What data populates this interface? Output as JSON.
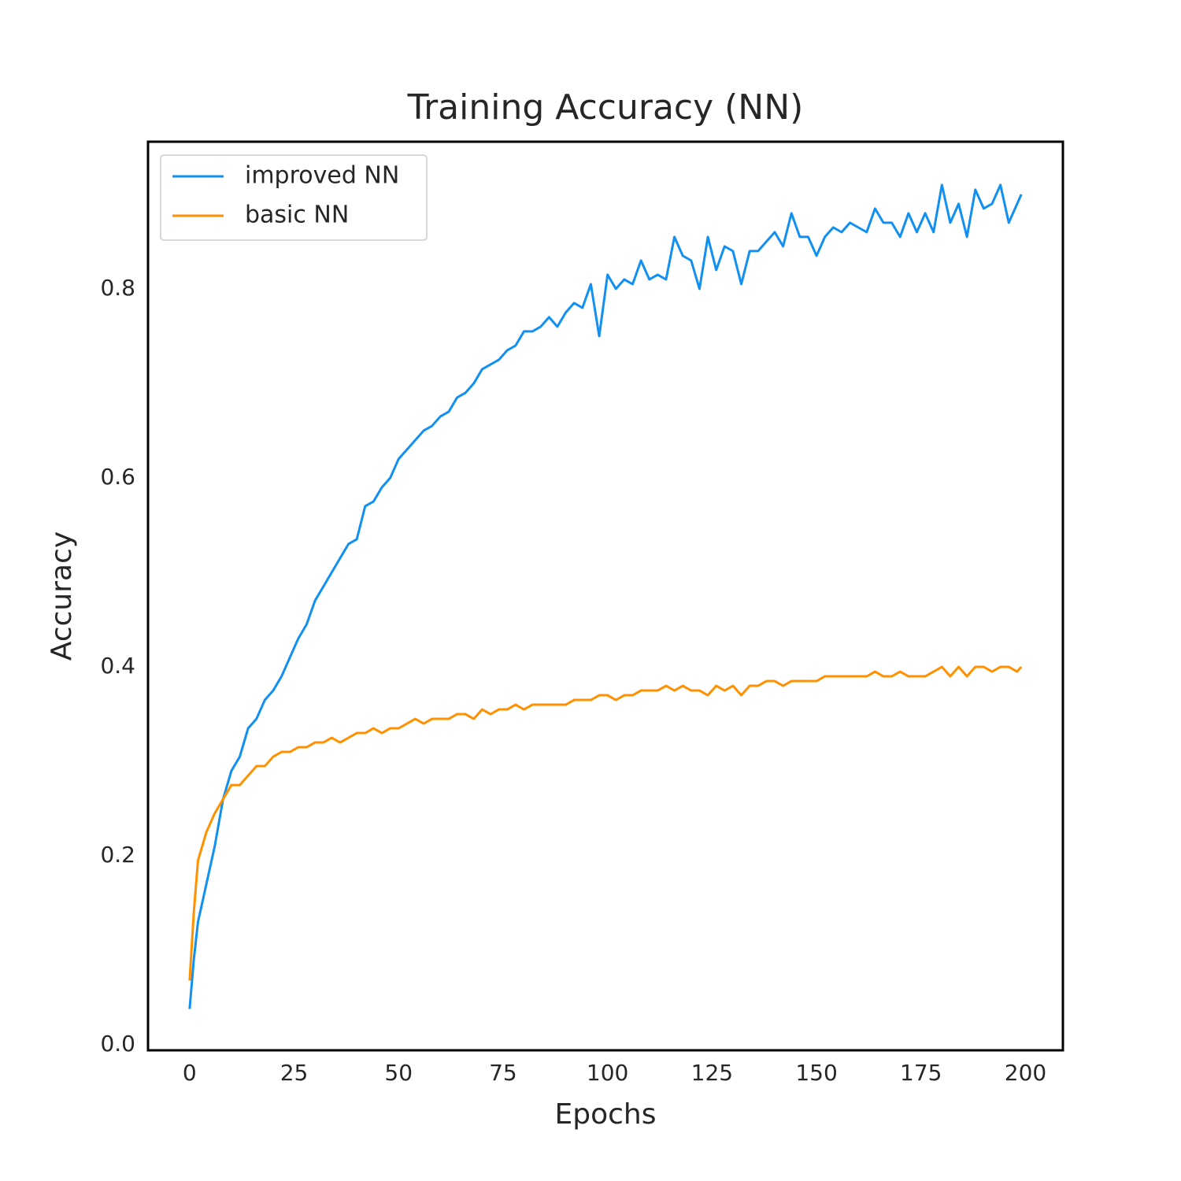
{
  "chart_data": {
    "type": "line",
    "title": "Training Accuracy (NN)",
    "xlabel": "Epochs",
    "ylabel": "Accuracy",
    "x": [
      0,
      1,
      2,
      4,
      6,
      8,
      10,
      12,
      14,
      16,
      18,
      20,
      22,
      24,
      26,
      28,
      30,
      32,
      34,
      36,
      38,
      40,
      42,
      44,
      46,
      48,
      50,
      52,
      54,
      56,
      58,
      60,
      62,
      64,
      66,
      68,
      70,
      72,
      74,
      76,
      78,
      80,
      82,
      84,
      86,
      88,
      90,
      92,
      94,
      96,
      98,
      100,
      102,
      104,
      106,
      108,
      110,
      112,
      114,
      116,
      118,
      120,
      122,
      124,
      126,
      128,
      130,
      132,
      134,
      136,
      138,
      140,
      142,
      144,
      146,
      148,
      150,
      152,
      154,
      156,
      158,
      160,
      162,
      164,
      166,
      168,
      170,
      172,
      174,
      176,
      178,
      180,
      182,
      184,
      186,
      188,
      190,
      192,
      194,
      196,
      198,
      199
    ],
    "series": [
      {
        "name": "improved NN",
        "color": "#1190f2",
        "values": [
          0.038,
          0.09,
          0.13,
          0.17,
          0.21,
          0.26,
          0.29,
          0.305,
          0.335,
          0.345,
          0.365,
          0.375,
          0.39,
          0.41,
          0.43,
          0.445,
          0.47,
          0.485,
          0.5,
          0.515,
          0.53,
          0.535,
          0.57,
          0.575,
          0.59,
          0.6,
          0.62,
          0.63,
          0.64,
          0.65,
          0.655,
          0.665,
          0.67,
          0.685,
          0.69,
          0.7,
          0.715,
          0.72,
          0.725,
          0.735,
          0.74,
          0.755,
          0.755,
          0.76,
          0.77,
          0.76,
          0.775,
          0.785,
          0.78,
          0.805,
          0.75,
          0.815,
          0.8,
          0.81,
          0.805,
          0.83,
          0.81,
          0.815,
          0.81,
          0.855,
          0.835,
          0.83,
          0.8,
          0.855,
          0.82,
          0.845,
          0.84,
          0.805,
          0.84,
          0.84,
          0.85,
          0.86,
          0.845,
          0.88,
          0.855,
          0.855,
          0.835,
          0.855,
          0.865,
          0.86,
          0.87,
          0.865,
          0.86,
          0.885,
          0.87,
          0.87,
          0.855,
          0.88,
          0.86,
          0.88,
          0.86,
          0.91,
          0.87,
          0.89,
          0.855,
          0.905,
          0.885,
          0.89,
          0.91,
          0.87,
          0.89,
          0.9
        ]
      },
      {
        "name": "basic NN",
        "color": "#ff9100",
        "values": [
          0.068,
          0.14,
          0.195,
          0.225,
          0.245,
          0.26,
          0.275,
          0.275,
          0.285,
          0.295,
          0.295,
          0.305,
          0.31,
          0.31,
          0.315,
          0.315,
          0.32,
          0.32,
          0.325,
          0.32,
          0.325,
          0.33,
          0.33,
          0.335,
          0.33,
          0.335,
          0.335,
          0.34,
          0.345,
          0.34,
          0.345,
          0.345,
          0.345,
          0.35,
          0.35,
          0.345,
          0.355,
          0.35,
          0.355,
          0.355,
          0.36,
          0.355,
          0.36,
          0.36,
          0.36,
          0.36,
          0.36,
          0.365,
          0.365,
          0.365,
          0.37,
          0.37,
          0.365,
          0.37,
          0.37,
          0.375,
          0.375,
          0.375,
          0.38,
          0.375,
          0.38,
          0.375,
          0.375,
          0.37,
          0.38,
          0.375,
          0.38,
          0.37,
          0.38,
          0.38,
          0.385,
          0.385,
          0.38,
          0.385,
          0.385,
          0.385,
          0.385,
          0.39,
          0.39,
          0.39,
          0.39,
          0.39,
          0.39,
          0.395,
          0.39,
          0.39,
          0.395,
          0.39,
          0.39,
          0.39,
          0.395,
          0.4,
          0.39,
          0.4,
          0.39,
          0.4,
          0.4,
          0.395,
          0.4,
          0.4,
          0.395,
          0.4
        ]
      }
    ],
    "xlim": [
      -9.95,
      208.95
    ],
    "xticks": [
      0,
      25,
      50,
      75,
      100,
      125,
      150,
      175,
      200
    ],
    "ylim": [
      -0.0057,
      0.9557
    ],
    "yticks": [
      {
        "value": 0,
        "label": "0.0"
      },
      0.2,
      0.4,
      0.6,
      0.8
    ],
    "grid": false,
    "legend": "upper left"
  }
}
